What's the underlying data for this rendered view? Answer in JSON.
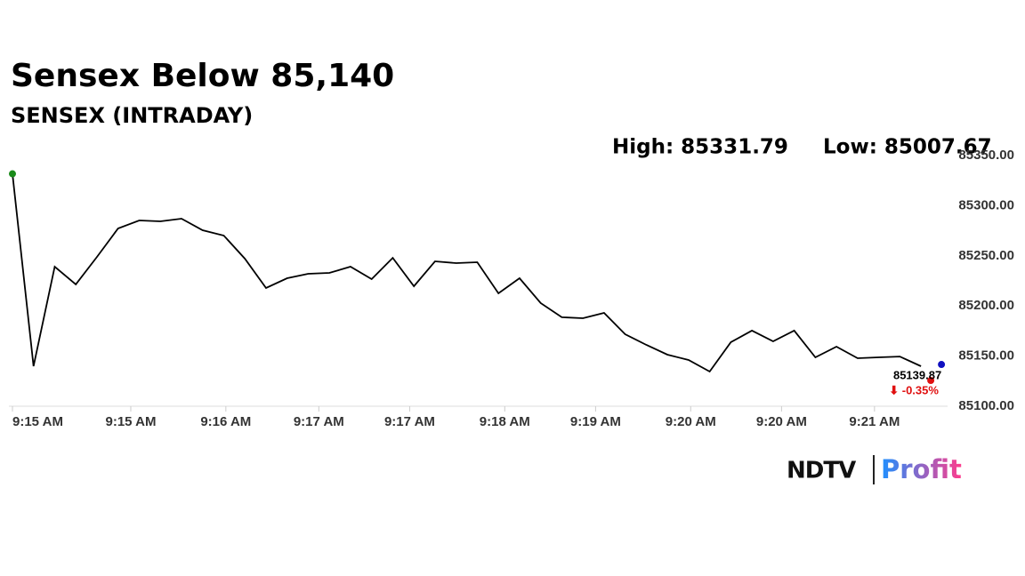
{
  "chart_data": {
    "type": "line",
    "title": "Sensex Below 85,140",
    "subtitle": "SENSEX (INTRADAY)",
    "high_text": "High: 85331.79",
    "low_text": "Low: 85007.67",
    "values": [
      85331.79,
      85139.9,
      85239.2,
      85221.5,
      85248.9,
      85277.3,
      85285.3,
      85284.4,
      85287.1,
      85275.5,
      85270.2,
      85247.2,
      85217.9,
      85227.7,
      85232.1,
      85233,
      85239.2,
      85226.8,
      85248,
      85219.7,
      85244.5,
      85242.7,
      85243.6,
      85212.6,
      85227.7,
      85202.8,
      85188.7,
      85187.8,
      85193.1,
      85171.8,
      85161.2,
      85151.4,
      85146.1,
      85134.6,
      85163.8,
      85175.4,
      85164.7,
      85175.4,
      85148.8,
      85159.4,
      85147.9,
      85148.8,
      85149.6,
      85139.87
    ],
    "color": "#000000",
    "start_color": "#1a8a1a",
    "end_color": "#1010c0",
    "change_color": "#e01010",
    "last_label": "85139.87",
    "change_label": "⬇ -0.35%",
    "xlim": [
      0,
      44.47
    ],
    "xticks": [
      {
        "value": 0,
        "label": "9:15 AM"
      },
      {
        "value": 5.6,
        "label": "9:15 AM"
      },
      {
        "value": 10.1,
        "label": "9:16 AM"
      },
      {
        "value": 14.5,
        "label": "9:17 AM"
      },
      {
        "value": 18.8,
        "label": "9:17 AM"
      },
      {
        "value": 23.3,
        "label": "9:18 AM"
      },
      {
        "value": 27.6,
        "label": "9:19 AM"
      },
      {
        "value": 32.1,
        "label": "9:20 AM"
      },
      {
        "value": 36.4,
        "label": "9:20 AM"
      },
      {
        "value": 40.8,
        "label": "9:21 AM"
      }
    ],
    "ylim": [
      85100,
      85350
    ],
    "yticks": [
      {
        "value": 85100,
        "label": "85100.00"
      },
      {
        "value": 85150,
        "label": "85150.00"
      },
      {
        "value": 85200,
        "label": "85200.00"
      },
      {
        "value": 85250,
        "label": "85250.00"
      },
      {
        "value": 85300,
        "label": "85300.00"
      },
      {
        "value": 85350,
        "label": "85350.00"
      }
    ]
  },
  "logo": {
    "brand": "NDTV",
    "product": "Profit"
  }
}
